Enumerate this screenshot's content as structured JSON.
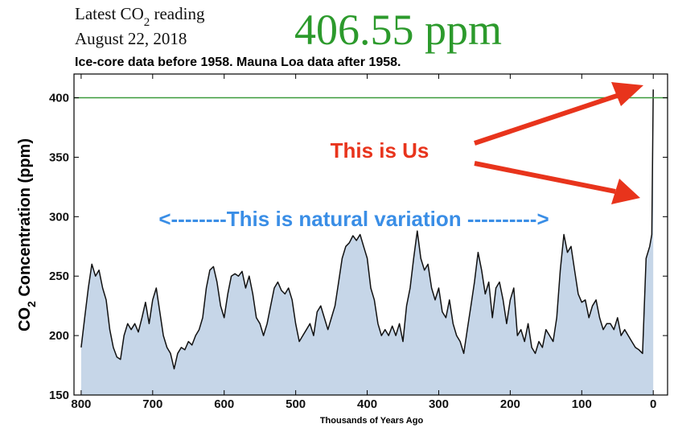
{
  "chart_data": {
    "type": "area",
    "reading_label": {
      "prefix": "Latest CO",
      "sub": "2",
      "suffix": " reading"
    },
    "reading_date": "August 22, 2018",
    "latest_reading": "406.55 ppm",
    "subtitle": "Ice-core data before 1958. Mauna Loa data after 1958.",
    "y_label": {
      "prefix": "CO",
      "sub": "2",
      "suffix": " Concentration (ppm)"
    },
    "x_label": "Thousands of Years Ago",
    "annotations": [
      "This is Us",
      "<--------This is natural variation ---------->"
    ],
    "color": "#111111",
    "fill_color": "#c6d6e8",
    "reference_line": {
      "value": 400,
      "color": "#3a9a3a"
    },
    "xlim": [
      810,
      -20
    ],
    "ylim": [
      150,
      420
    ],
    "xticks": [
      800,
      700,
      600,
      500,
      400,
      300,
      200,
      100,
      0
    ],
    "yticks": [
      150,
      200,
      250,
      300,
      350,
      400
    ],
    "x": [
      800,
      795,
      790,
      785,
      780,
      775,
      770,
      765,
      760,
      755,
      750,
      745,
      740,
      735,
      730,
      725,
      720,
      715,
      710,
      705,
      700,
      695,
      690,
      685,
      680,
      675,
      670,
      665,
      660,
      655,
      650,
      645,
      640,
      635,
      630,
      625,
      620,
      615,
      610,
      605,
      600,
      595,
      590,
      585,
      580,
      575,
      570,
      565,
      560,
      555,
      550,
      545,
      540,
      535,
      530,
      525,
      520,
      515,
      510,
      505,
      500,
      495,
      490,
      485,
      480,
      475,
      470,
      465,
      460,
      455,
      450,
      445,
      440,
      435,
      430,
      425,
      420,
      415,
      410,
      405,
      400,
      395,
      390,
      385,
      380,
      375,
      370,
      365,
      360,
      355,
      350,
      345,
      340,
      335,
      330,
      325,
      320,
      315,
      310,
      305,
      300,
      295,
      290,
      285,
      280,
      275,
      270,
      265,
      260,
      255,
      250,
      245,
      240,
      235,
      230,
      225,
      220,
      215,
      210,
      205,
      200,
      195,
      190,
      185,
      180,
      175,
      170,
      165,
      160,
      155,
      150,
      145,
      140,
      135,
      130,
      125,
      120,
      115,
      110,
      105,
      100,
      95,
      90,
      85,
      80,
      75,
      70,
      65,
      60,
      55,
      50,
      45,
      40,
      35,
      30,
      25,
      20,
      15,
      10,
      5,
      2,
      0
    ],
    "values": [
      190,
      215,
      240,
      260,
      250,
      255,
      240,
      230,
      205,
      190,
      182,
      180,
      200,
      210,
      205,
      210,
      203,
      215,
      228,
      210,
      230,
      240,
      220,
      200,
      190,
      185,
      172,
      185,
      190,
      188,
      195,
      192,
      200,
      205,
      215,
      240,
      255,
      258,
      245,
      225,
      215,
      235,
      250,
      252,
      250,
      254,
      240,
      250,
      235,
      215,
      210,
      200,
      210,
      225,
      240,
      245,
      238,
      235,
      240,
      230,
      210,
      195,
      200,
      205,
      210,
      200,
      220,
      225,
      215,
      205,
      215,
      225,
      245,
      265,
      275,
      278,
      284,
      280,
      285,
      275,
      265,
      240,
      230,
      210,
      200,
      205,
      200,
      208,
      200,
      210,
      195,
      225,
      240,
      265,
      288,
      265,
      255,
      260,
      240,
      230,
      240,
      220,
      215,
      230,
      210,
      200,
      195,
      185,
      205,
      225,
      245,
      270,
      255,
      235,
      245,
      215,
      240,
      245,
      230,
      210,
      230,
      240,
      200,
      205,
      195,
      210,
      190,
      185,
      195,
      190,
      205,
      200,
      195,
      215,
      255,
      285,
      270,
      275,
      255,
      235,
      228,
      230,
      215,
      225,
      230,
      215,
      205,
      210,
      210,
      205,
      215,
      200,
      205,
      200,
      195,
      190,
      188,
      185,
      265,
      275,
      285,
      407
    ]
  }
}
